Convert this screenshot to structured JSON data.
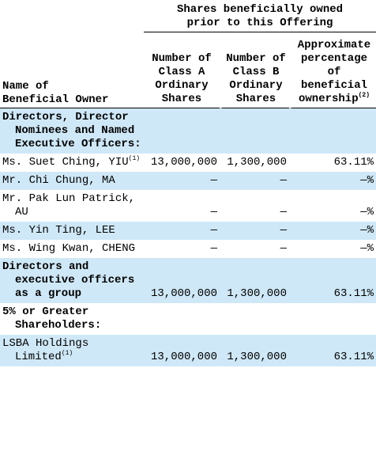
{
  "header": {
    "group": "Shares beneficially owned prior to this Offering",
    "name_column": "Name of Beneficial Owner",
    "columns": [
      "Number of Class A Ordinary Shares",
      "Number of Class B Ordinary Shares",
      "Approximate percentage of beneficial ownership"
    ],
    "column_notes": [
      null,
      null,
      "(2)"
    ]
  },
  "rows": [
    {
      "name": "Directors, Director Nominees and Named Executive Officers:",
      "section": true,
      "shade": true
    },
    {
      "name": "Ms. Suet Ching, YIU",
      "note": "(1)",
      "cells": [
        "13,000,000",
        "1,300,000",
        "63.11%"
      ],
      "shade": false
    },
    {
      "name": "Mr. Chi Chung, MA",
      "cells": [
        "—",
        "—",
        "—%"
      ],
      "shade": true
    },
    {
      "name": "Mr. Pak Lun Patrick, AU",
      "cells": [
        "—",
        "—",
        "—%"
      ],
      "shade": false
    },
    {
      "name": "Ms. Yin Ting, LEE",
      "cells": [
        "—",
        "—",
        "—%"
      ],
      "shade": true
    },
    {
      "name": "Ms. Wing Kwan, CHENG",
      "cells": [
        "—",
        "—",
        "—%"
      ],
      "shade": false
    },
    {
      "name": "Directors and executive officers as a group",
      "section": true,
      "cells": [
        "13,000,000",
        "1,300,000",
        "63.11%"
      ],
      "shade": true
    },
    {
      "name": "5% or Greater Shareholders:",
      "section": true,
      "shade": false
    },
    {
      "name": "LSBA Holdings Limited",
      "note": "(1)",
      "cells": [
        "13,000,000",
        "1,300,000",
        "63.11%"
      ],
      "shade": true
    }
  ]
}
